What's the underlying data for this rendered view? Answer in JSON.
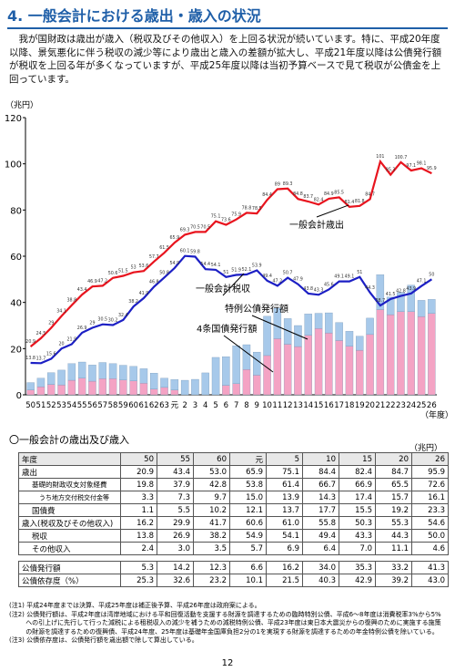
{
  "header": {
    "title": "4. 一般会計における歳出・歳入の状況"
  },
  "intro": "我が国財政は歳出が歳入（税収及びその他収入）を上回る状況が続いています。特に、平成20年度以降、景気悪化に伴う税収の減少等により歳出と歳入の差額が拡大し、平成21年度以降は公債発行額が税収を上回る年が多くなっていますが、平成25年度以降は当初予算ベースで見て税収が公債金を上回っています。",
  "chart_data": {
    "type": "bar-line",
    "y_label": "（兆円）",
    "x_label": "（年度）",
    "categories": [
      "50",
      "51",
      "52",
      "53",
      "54",
      "55",
      "56",
      "57",
      "58",
      "59",
      "60",
      "61",
      "62",
      "63",
      "元",
      "2",
      "3",
      "4",
      "5",
      "6",
      "7",
      "8",
      "9",
      "10",
      "11",
      "12",
      "13",
      "14",
      "15",
      "16",
      "17",
      "18",
      "19",
      "20",
      "21",
      "22",
      "23",
      "24",
      "25",
      "26"
    ],
    "ylim": [
      0,
      120
    ],
    "yticks": [
      0,
      20,
      40,
      60,
      80,
      100,
      120
    ],
    "series": [
      {
        "name": "一般会計歳出",
        "type": "line",
        "color": "#e8141e",
        "values": [
          20.9,
          24.5,
          29.0,
          34.1,
          38.8,
          43.4,
          46.9,
          47.2,
          50.6,
          51.5,
          53.0,
          53.6,
          57.7,
          61.5,
          65.9,
          69.3,
          70.5,
          70.5,
          75.1,
          73.6,
          75.9,
          78.8,
          78.5,
          84.4,
          89.0,
          89.3,
          84.8,
          83.7,
          82.4,
          84.9,
          85.5,
          81.4,
          81.8,
          84.7,
          101.0,
          95.3,
          100.7,
          97.1,
          98.1,
          95.9
        ]
      },
      {
        "name": "一般会計税収",
        "type": "line",
        "color": "#1c1fc4",
        "values": [
          13.8,
          13.7,
          15.6,
          20.0,
          21.9,
          26.9,
          29.0,
          30.5,
          30.2,
          32.4,
          38.2,
          41.9,
          46.8,
          50.8,
          54.9,
          60.1,
          59.8,
          54.4,
          54.1,
          51.0,
          51.9,
          52.1,
          53.9,
          49.4,
          47.2,
          50.7,
          47.9,
          43.8,
          43.3,
          45.6,
          49.1,
          49.1,
          51.0,
          44.3,
          38.7,
          41.5,
          42.8,
          43.9,
          47.1,
          50.0
        ]
      },
      {
        "name": "特例公債発行額",
        "type": "bar",
        "color": "#f4a3c4",
        "values": [
          2.1,
          3.5,
          4.5,
          4.3,
          6.3,
          7.2,
          5.9,
          7.0,
          7.0,
          6.4,
          6.0,
          5.0,
          2.5,
          3.2,
          2.1,
          0,
          0,
          0,
          0,
          4.1,
          4.8,
          11.0,
          8.5,
          17.0,
          24.3,
          21.9,
          20.9,
          25.8,
          28.7,
          26.8,
          23.5,
          21.0,
          19.3,
          26.1,
          36.9,
          34.7,
          36.0,
          36.0,
          33.9,
          35.2
        ]
      },
      {
        "name": "4条国債発行額",
        "type": "bar",
        "color": "#a7c9ea",
        "values": [
          3.2,
          3.7,
          5.1,
          6.4,
          7.2,
          7.0,
          7.0,
          7.0,
          6.5,
          6.4,
          6.3,
          6.3,
          6.9,
          4.0,
          4.5,
          6.3,
          6.7,
          9.5,
          16.2,
          12.4,
          16.4,
          10.7,
          10.0,
          17.0,
          13.2,
          11.1,
          9.1,
          9.2,
          6.6,
          8.7,
          7.8,
          6.5,
          6.1,
          7.1,
          15.1,
          7.6,
          8.3,
          11.5,
          7.0,
          6.1
        ]
      }
    ]
  },
  "table": {
    "heading": "〇一般会計の歳出及び歳入",
    "unit": "（兆円）",
    "header": [
      "年度",
      "50",
      "55",
      "60",
      "元",
      "5",
      "10",
      "15",
      "20",
      "26"
    ],
    "rows": [
      [
        "歳出",
        "20.9",
        "43.4",
        "53.0",
        "65.9",
        "75.1",
        "84.4",
        "82.4",
        "84.7",
        "95.9"
      ],
      [
        "基礎的財政収支対象経費",
        "19.8",
        "37.9",
        "42.8",
        "53.8",
        "61.4",
        "66.7",
        "66.9",
        "65.5",
        "72.6"
      ],
      [
        "うち地方交付税交付金等",
        "3.3",
        "7.3",
        "9.7",
        "15.0",
        "13.9",
        "14.3",
        "17.4",
        "15.7",
        "16.1"
      ],
      [
        "国債費",
        "1.1",
        "5.5",
        "10.2",
        "12.1",
        "13.7",
        "17.7",
        "15.5",
        "19.2",
        "23.3"
      ],
      [
        "歳入(税収及びその他収入)",
        "16.2",
        "29.9",
        "41.7",
        "60.6",
        "61.0",
        "55.8",
        "50.3",
        "55.3",
        "54.6"
      ],
      [
        "税収",
        "13.8",
        "26.9",
        "38.2",
        "54.9",
        "54.1",
        "49.4",
        "43.3",
        "44.3",
        "50.0"
      ],
      [
        "その他収入",
        "2.4",
        "3.0",
        "3.5",
        "5.7",
        "6.9",
        "6.4",
        "7.0",
        "11.1",
        "4.6"
      ],
      [
        "公債発行額",
        "5.3",
        "14.2",
        "12.3",
        "6.6",
        "16.2",
        "34.0",
        "35.3",
        "33.2",
        "41.3"
      ],
      [
        "公債依存度（%）",
        "25.3",
        "32.6",
        "23.2",
        "10.1",
        "21.5",
        "40.3",
        "42.9",
        "39.2",
        "43.0"
      ]
    ]
  },
  "notes": [
    "(注1) 平成24年度までは決算、平成25年度は補正後予算、平成26年度は政府案による。",
    "(注2) 公債発行額は、平成2年度は湾岸地域における平和回復活動を支援する財源を調達するための臨時特別公債、平成6～8年度は消費税率3%から5%への引上げに先行して行った減税による租税収入の減少を補うための減税特例公債、平成23年度は東日本大震災からの復興のために実施する施策の財源を調達するための復興債、平成24年度、25年度は基礎年金国庫負担2分の1を実現する財源を調達するための年金特例公債を除いている。",
    "(注3) 公債依存度は、公債発行額を歳出額で除して算出している。"
  ],
  "page_number": "12"
}
